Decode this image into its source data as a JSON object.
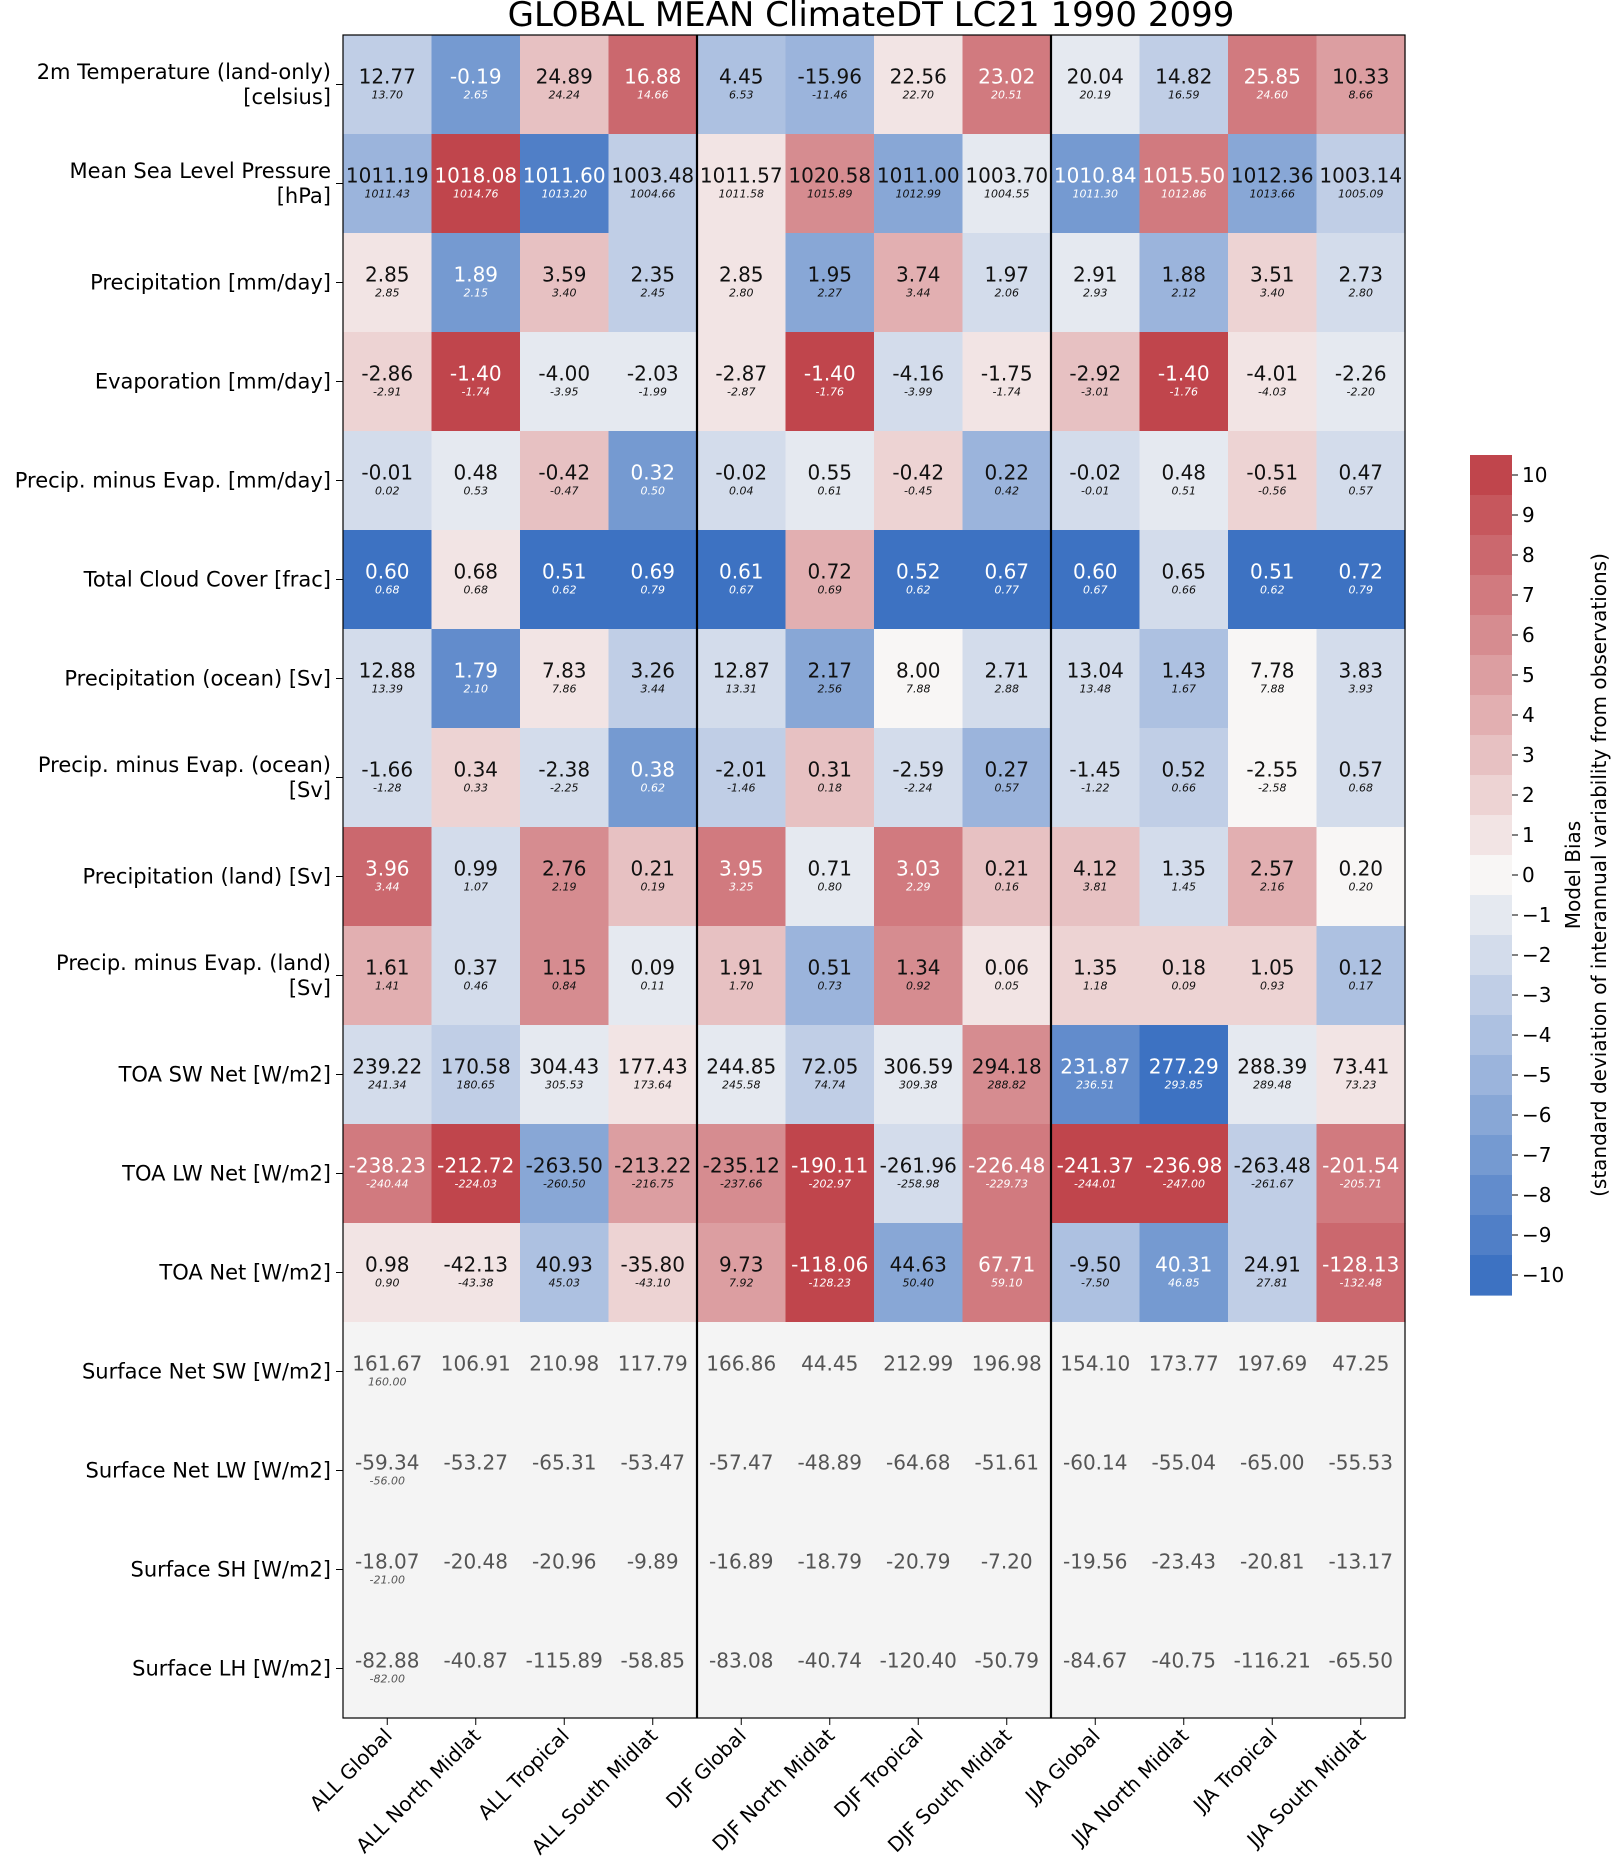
{
  "chart_data": {
    "type": "heatmap",
    "title": "GLOBAL MEAN ClimateDT LC21 1990 2099",
    "rows": [
      "2m Temperature (land-only)\n[celsius]",
      "Mean Sea Level Pressure\n[hPa]",
      "Precipitation [mm/day]",
      "Evaporation [mm/day]",
      "Precip. minus Evap. [mm/day]",
      "Total Cloud Cover [frac]",
      "Precipitation (ocean) [Sv]",
      "Precip. minus Evap. (ocean)\n[Sv]",
      "Precipitation (land) [Sv]",
      "Precip. minus Evap. (land)\n[Sv]",
      "TOA SW Net [W/m2]",
      "TOA LW Net [W/m2]",
      "TOA Net [W/m2]",
      "Surface Net SW [W/m2]",
      "Surface Net LW [W/m2]",
      "Surface SH [W/m2]",
      "Surface LH [W/m2]"
    ],
    "columns": [
      "ALL Global",
      "ALL North Midlat",
      "ALL Tropical",
      "ALL South Midlat",
      "DJF Global",
      "DJF North Midlat",
      "DJF Tropical",
      "DJF South Midlat",
      "JJA Global",
      "JJA North Midlat",
      "JJA Tropical",
      "JJA South Midlat"
    ],
    "model_values": [
      [
        "12.77",
        "-0.19",
        "24.89",
        "16.88",
        "4.45",
        "-15.96",
        "22.56",
        "23.02",
        "20.04",
        "14.82",
        "25.85",
        "10.33"
      ],
      [
        "1011.19",
        "1018.08",
        "1011.60",
        "1003.48",
        "1011.57",
        "1020.58",
        "1011.00",
        "1003.70",
        "1010.84",
        "1015.50",
        "1012.36",
        "1003.14"
      ],
      [
        "2.85",
        "1.89",
        "3.59",
        "2.35",
        "2.85",
        "1.95",
        "3.74",
        "1.97",
        "2.91",
        "1.88",
        "3.51",
        "2.73"
      ],
      [
        "-2.86",
        "-1.40",
        "-4.00",
        "-2.03",
        "-2.87",
        "-1.40",
        "-4.16",
        "-1.75",
        "-2.92",
        "-1.40",
        "-4.01",
        "-2.26"
      ],
      [
        "-0.01",
        "0.48",
        "-0.42",
        "0.32",
        "-0.02",
        "0.55",
        "-0.42",
        "0.22",
        "-0.02",
        "0.48",
        "-0.51",
        "0.47"
      ],
      [
        "0.60",
        "0.68",
        "0.51",
        "0.69",
        "0.61",
        "0.72",
        "0.52",
        "0.67",
        "0.60",
        "0.65",
        "0.51",
        "0.72"
      ],
      [
        "12.88",
        "1.79",
        "7.83",
        "3.26",
        "12.87",
        "2.17",
        "8.00",
        "2.71",
        "13.04",
        "1.43",
        "7.78",
        "3.83"
      ],
      [
        "-1.66",
        "0.34",
        "-2.38",
        "0.38",
        "-2.01",
        "0.31",
        "-2.59",
        "0.27",
        "-1.45",
        "0.52",
        "-2.55",
        "0.57"
      ],
      [
        "3.96",
        "0.99",
        "2.76",
        "0.21",
        "3.95",
        "0.71",
        "3.03",
        "0.21",
        "4.12",
        "1.35",
        "2.57",
        "0.20"
      ],
      [
        "1.61",
        "0.37",
        "1.15",
        "0.09",
        "1.91",
        "0.51",
        "1.34",
        "0.06",
        "1.35",
        "0.18",
        "1.05",
        "0.12"
      ],
      [
        "239.22",
        "170.58",
        "304.43",
        "177.43",
        "244.85",
        "72.05",
        "306.59",
        "294.18",
        "231.87",
        "277.29",
        "288.39",
        "73.41"
      ],
      [
        "-238.23",
        "-212.72",
        "-263.50",
        "-213.22",
        "-235.12",
        "-190.11",
        "-261.96",
        "-226.48",
        "-241.37",
        "-236.98",
        "-263.48",
        "-201.54"
      ],
      [
        "0.98",
        "-42.13",
        "40.93",
        "-35.80",
        "9.73",
        "-118.06",
        "44.63",
        "67.71",
        "-9.50",
        "40.31",
        "24.91",
        "-128.13"
      ],
      [
        "161.67",
        "106.91",
        "210.98",
        "117.79",
        "166.86",
        "44.45",
        "212.99",
        "196.98",
        "154.10",
        "173.77",
        "197.69",
        "47.25"
      ],
      [
        "-59.34",
        "-53.27",
        "-65.31",
        "-53.47",
        "-57.47",
        "-48.89",
        "-64.68",
        "-51.61",
        "-60.14",
        "-55.04",
        "-65.00",
        "-55.53"
      ],
      [
        "-18.07",
        "-20.48",
        "-20.96",
        "-9.89",
        "-16.89",
        "-18.79",
        "-20.79",
        "-7.20",
        "-19.56",
        "-23.43",
        "-20.81",
        "-13.17"
      ],
      [
        "-82.88",
        "-40.87",
        "-115.89",
        "-58.85",
        "-83.08",
        "-40.74",
        "-120.40",
        "-50.79",
        "-84.67",
        "-40.75",
        "-116.21",
        "-65.50"
      ]
    ],
    "observation_values": [
      [
        "13.70",
        "2.65",
        "24.24",
        "14.66",
        "6.53",
        "-11.46",
        "22.70",
        "20.51",
        "20.19",
        "16.59",
        "24.60",
        "8.66"
      ],
      [
        "1011.43",
        "1014.76",
        "1013.20",
        "1004.66",
        "1011.58",
        "1015.89",
        "1012.99",
        "1004.55",
        "1011.30",
        "1012.86",
        "1013.66",
        "1005.09"
      ],
      [
        "2.85",
        "2.15",
        "3.40",
        "2.45",
        "2.80",
        "2.27",
        "3.44",
        "2.06",
        "2.93",
        "2.12",
        "3.40",
        "2.80"
      ],
      [
        "-2.91",
        "-1.74",
        "-3.95",
        "-1.99",
        "-2.87",
        "-1.76",
        "-3.99",
        "-1.74",
        "-3.01",
        "-1.76",
        "-4.03",
        "-2.20"
      ],
      [
        "0.02",
        "0.53",
        "-0.47",
        "0.50",
        "0.04",
        "0.61",
        "-0.45",
        "0.42",
        "-0.01",
        "0.51",
        "-0.56",
        "0.57"
      ],
      [
        "0.68",
        "0.68",
        "0.62",
        "0.79",
        "0.67",
        "0.69",
        "0.62",
        "0.77",
        "0.67",
        "0.66",
        "0.62",
        "0.79"
      ],
      [
        "13.39",
        "2.10",
        "7.86",
        "3.44",
        "13.31",
        "2.56",
        "7.88",
        "2.88",
        "13.48",
        "1.67",
        "7.88",
        "3.93"
      ],
      [
        "-1.28",
        "0.33",
        "-2.25",
        "0.62",
        "-1.46",
        "0.18",
        "-2.24",
        "0.57",
        "-1.22",
        "0.66",
        "-2.58",
        "0.68"
      ],
      [
        "3.44",
        "1.07",
        "2.19",
        "0.19",
        "3.25",
        "0.80",
        "2.29",
        "0.16",
        "3.81",
        "1.45",
        "2.16",
        "0.20"
      ],
      [
        "1.41",
        "0.46",
        "0.84",
        "0.11",
        "1.70",
        "0.73",
        "0.92",
        "0.05",
        "1.18",
        "0.09",
        "0.93",
        "0.17"
      ],
      [
        "241.34",
        "180.65",
        "305.53",
        "173.64",
        "245.58",
        "74.74",
        "309.38",
        "288.82",
        "236.51",
        "293.85",
        "289.48",
        "73.23"
      ],
      [
        "-240.44",
        "-224.03",
        "-260.50",
        "-216.75",
        "-237.66",
        "-202.97",
        "-258.98",
        "-229.73",
        "-244.01",
        "-247.00",
        "-261.67",
        "-205.71"
      ],
      [
        "0.90",
        "-43.38",
        "45.03",
        "-43.10",
        "7.92",
        "-128.23",
        "50.40",
        "59.10",
        "-7.50",
        "46.85",
        "27.81",
        "-132.48"
      ],
      [
        "160.00",
        "",
        "",
        "",
        "",
        "",
        "",
        "",
        "",
        "",
        "",
        ""
      ],
      [
        "-56.00",
        "",
        "",
        "",
        "",
        "",
        "",
        "",
        "",
        "",
        "",
        ""
      ],
      [
        "-21.00",
        "",
        "",
        "",
        "",
        "",
        "",
        "",
        "",
        "",
        "",
        ""
      ],
      [
        "-82.00",
        "",
        "",
        "",
        "",
        "",
        "",
        "",
        "",
        "",
        "",
        ""
      ]
    ],
    "model_bias_sd": [
      [
        -3,
        -7,
        3,
        8,
        -4,
        -5,
        1,
        7,
        -1,
        -3,
        7,
        5
      ],
      [
        -5,
        10,
        -9,
        -3,
        1,
        6,
        -6,
        -1,
        -7,
        7,
        -6,
        -3
      ],
      [
        1,
        -7,
        3,
        -3,
        1,
        -6,
        4,
        -2,
        -1,
        -5,
        2,
        -2
      ],
      [
        2,
        10,
        -1,
        -1,
        1,
        10,
        -2,
        1,
        3,
        10,
        1,
        -1
      ],
      [
        -2,
        -1,
        3,
        -7,
        -2,
        -1,
        2,
        -5,
        -2,
        -1,
        2,
        -2
      ],
      [
        -10,
        1,
        -10,
        -10,
        -10,
        4,
        -10,
        -10,
        -10,
        -2,
        -10,
        -10
      ],
      [
        -2,
        -8,
        1,
        -3,
        -2,
        -6,
        0,
        -2,
        -2,
        -4,
        0,
        -2
      ],
      [
        -2,
        2,
        -2,
        -7,
        -3,
        3,
        -2,
        -5,
        -2,
        -3,
        0,
        -2
      ],
      [
        8,
        -2,
        6,
        3,
        7,
        -1,
        7,
        3,
        3,
        -2,
        4,
        0
      ],
      [
        4,
        -2,
        6,
        -1,
        3,
        -5,
        6,
        1,
        2,
        2,
        2,
        -4
      ],
      [
        -2,
        -3,
        -1,
        1,
        -1,
        -3,
        -1,
        6,
        -8,
        -10,
        -1,
        1
      ],
      [
        7,
        10,
        -6,
        5,
        6,
        10,
        -2,
        7,
        10,
        10,
        -3,
        7
      ],
      [
        1,
        1,
        -4,
        2,
        5,
        10,
        -6,
        7,
        -4,
        -7,
        -3,
        8
      ],
      [
        null,
        null,
        null,
        null,
        null,
        null,
        null,
        null,
        null,
        null,
        null,
        null
      ],
      [
        null,
        null,
        null,
        null,
        null,
        null,
        null,
        null,
        null,
        null,
        null,
        null
      ],
      [
        null,
        null,
        null,
        null,
        null,
        null,
        null,
        null,
        null,
        null,
        null,
        null
      ],
      [
        null,
        null,
        null,
        null,
        null,
        null,
        null,
        null,
        null,
        null,
        null,
        null
      ]
    ],
    "colorbar": {
      "label_line1": "Model Bias",
      "label_line2": "(standard deviation of interannual variability from observations)",
      "range": [
        -10,
        10
      ],
      "ticks": [
        "10",
        "9",
        "8",
        "7",
        "6",
        "5",
        "4",
        "3",
        "2",
        "1",
        "0",
        "−1",
        "−2",
        "−3",
        "−4",
        "−5",
        "−6",
        "−7",
        "−8",
        "−9",
        "−10"
      ],
      "colormap": "vlag",
      "neg_color": "#3d72c2",
      "mid_color": "#f8f6f5",
      "pos_color": "#c0454c",
      "nan_color": "#f4f4f4"
    },
    "group_separators_after_columns": [
      4,
      8
    ],
    "grid": false,
    "legend": "right"
  }
}
